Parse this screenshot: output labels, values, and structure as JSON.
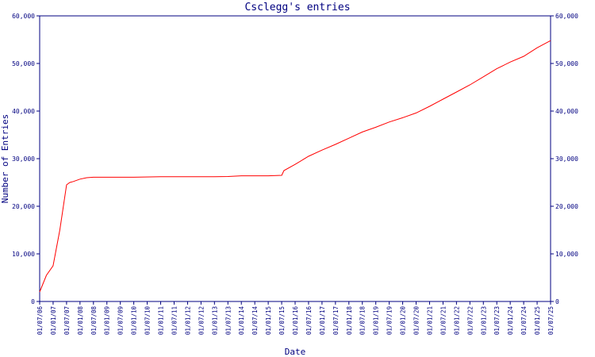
{
  "chart_data": {
    "type": "line",
    "title": "Csclegg's entries",
    "xlabel": "Date",
    "ylabel": "Number of Entries",
    "ylim": [
      0,
      60000
    ],
    "yticks": [
      0,
      10000,
      20000,
      30000,
      40000,
      50000,
      60000
    ],
    "ytick_labels": [
      "0",
      "10,000",
      "20,000",
      "30,000",
      "40,000",
      "50,000",
      "60,000"
    ],
    "xticks": [
      "01/07/06",
      "01/01/07",
      "01/07/07",
      "01/01/08",
      "01/07/08",
      "01/01/09",
      "01/07/09",
      "01/01/10",
      "01/07/10",
      "01/01/11",
      "01/07/11",
      "01/01/12",
      "01/07/12",
      "01/01/13",
      "01/07/13",
      "01/01/14",
      "01/07/14",
      "01/01/15",
      "01/07/15",
      "01/01/16",
      "01/07/16",
      "01/01/17",
      "01/07/17",
      "01/01/18",
      "01/07/18",
      "01/01/19",
      "01/07/19",
      "01/01/20",
      "01/07/20",
      "01/01/21",
      "01/07/21",
      "01/01/22",
      "01/07/22",
      "01/01/23",
      "01/07/23",
      "01/01/24",
      "01/07/24",
      "01/01/25",
      "01/07/25"
    ],
    "grid": false,
    "line_color": "#ff0000",
    "axis_color": "#000080",
    "series": [
      {
        "x": [
          "2006-07-01",
          "2006-10-01",
          "2007-01-01",
          "2007-04-01",
          "2007-07-01",
          "2007-08-15",
          "2007-10-01",
          "2008-01-01",
          "2008-04-01",
          "2008-07-01",
          "2009-01-01",
          "2010-01-01",
          "2011-01-01",
          "2012-01-01",
          "2013-01-01",
          "2013-07-01",
          "2014-01-01",
          "2015-01-01",
          "2015-07-01",
          "2015-08-01",
          "2016-01-01",
          "2016-07-01",
          "2017-01-01",
          "2017-07-01",
          "2018-01-01",
          "2018-07-01",
          "2019-01-01",
          "2019-07-01",
          "2020-01-01",
          "2020-07-01",
          "2021-01-01",
          "2021-07-01",
          "2022-01-01",
          "2022-07-01",
          "2023-01-01",
          "2023-07-01",
          "2024-01-01",
          "2024-07-01",
          "2025-01-01",
          "2025-07-01"
        ],
        "y": [
          2000,
          5500,
          7500,
          15000,
          24500,
          25000,
          25200,
          25700,
          26000,
          26100,
          26100,
          26100,
          26200,
          26200,
          26200,
          26250,
          26400,
          26400,
          26500,
          27500,
          28800,
          30500,
          31800,
          33000,
          34300,
          35600,
          36600,
          37700,
          38600,
          39600,
          41000,
          42500,
          44000,
          45500,
          47200,
          48900,
          50300,
          51500,
          53300,
          54800
        ]
      }
    ]
  }
}
